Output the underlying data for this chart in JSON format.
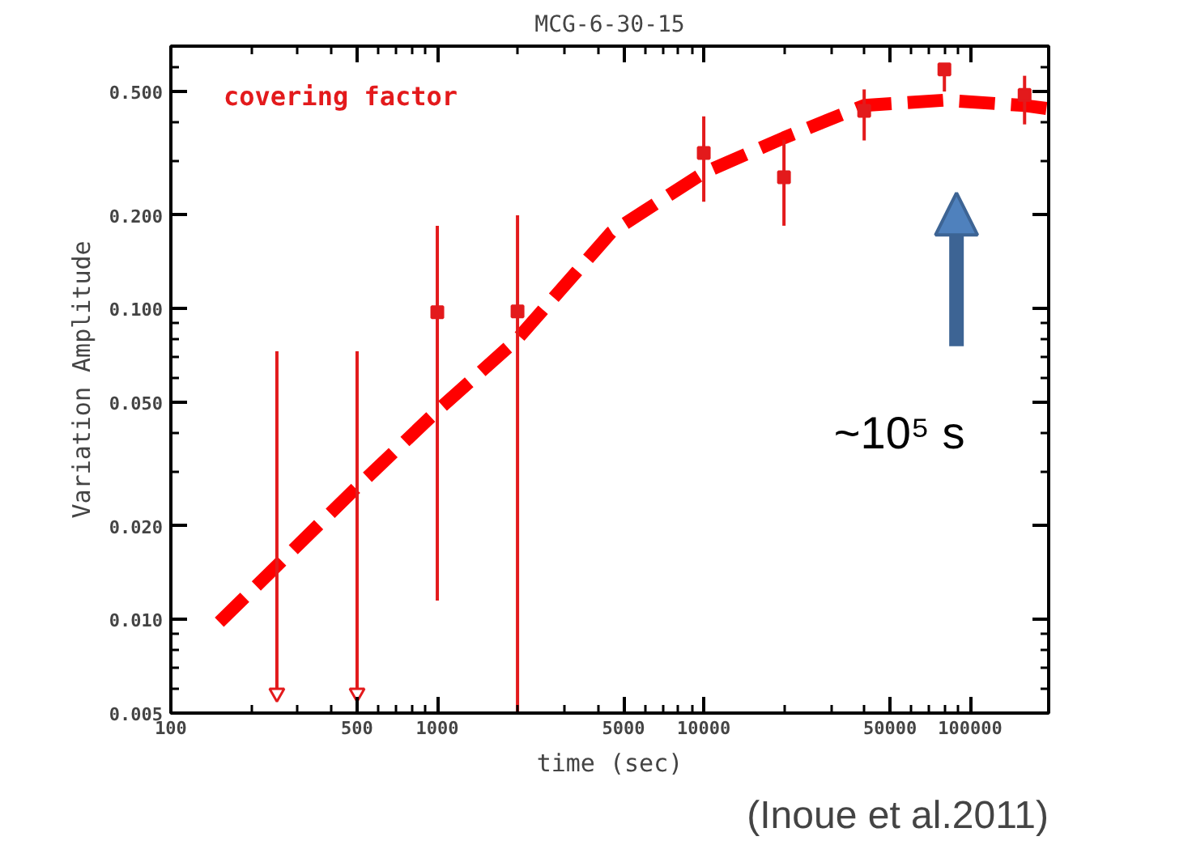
{
  "chart_data": {
    "type": "scatter",
    "title": "MCG-6-30-15",
    "xlabel": "time (sec)",
    "ylabel": "Variation Amplitude",
    "log": "xy",
    "xlim": [
      100,
      197000
    ],
    "ylim": [
      0.005,
      0.7
    ],
    "xticks": [
      100,
      {
        "value": 200,
        "label": null
      },
      {
        "value": 300,
        "label": null
      },
      {
        "value": 400,
        "label": null
      },
      500,
      {
        "value": 600,
        "label": null
      },
      {
        "value": 700,
        "label": null
      },
      {
        "value": 800,
        "label": null
      },
      {
        "value": 900,
        "label": null
      },
      1000,
      {
        "value": 2000,
        "label": null
      },
      {
        "value": 3000,
        "label": null
      },
      {
        "value": 4000,
        "label": null
      },
      5000,
      {
        "value": 6000,
        "label": null
      },
      {
        "value": 7000,
        "label": null
      },
      {
        "value": 8000,
        "label": null
      },
      {
        "value": 9000,
        "label": null
      },
      10000,
      {
        "value": 20000,
        "label": null
      },
      {
        "value": 30000,
        "label": null
      },
      {
        "value": 40000,
        "label": null
      },
      50000,
      {
        "value": 60000,
        "label": null
      },
      {
        "value": 70000,
        "label": null
      },
      {
        "value": 80000,
        "label": null
      },
      {
        "value": 90000,
        "label": null
      },
      100000
    ],
    "yticks": [
      {
        "value": 0.005,
        "label": "0.005"
      },
      {
        "value": 0.006,
        "label": null
      },
      {
        "value": 0.007,
        "label": null
      },
      {
        "value": 0.008,
        "label": null
      },
      {
        "value": 0.009,
        "label": null
      },
      {
        "value": 0.01,
        "label": "0.010"
      },
      {
        "value": 0.02,
        "label": "0.020"
      },
      {
        "value": 0.03,
        "label": null
      },
      {
        "value": 0.04,
        "label": null
      },
      {
        "value": 0.05,
        "label": "0.050"
      },
      {
        "value": 0.06,
        "label": null
      },
      {
        "value": 0.07,
        "label": null
      },
      {
        "value": 0.08,
        "label": null
      },
      {
        "value": 0.09,
        "label": null
      },
      {
        "value": 0.1,
        "label": "0.100"
      },
      {
        "value": 0.2,
        "label": "0.200"
      },
      {
        "value": 0.3,
        "label": null
      },
      {
        "value": 0.4,
        "label": null
      },
      {
        "value": 0.5,
        "label": "0.500"
      },
      {
        "value": 0.6,
        "label": null
      }
    ],
    "grid": false,
    "series": [
      {
        "name": "covering factor",
        "marker": "square",
        "color": "#e31a1c",
        "x": [
          1000,
          2000,
          10000,
          20000,
          40000,
          80000,
          160000
        ],
        "values": [
          0.0975,
          0.098,
          0.317,
          0.265,
          0.433,
          0.589,
          0.488
        ],
        "errors": [
          [
            0.0115,
            0.185
          ],
          [
            0.005,
            0.2
          ],
          [
            0.221,
            0.416
          ],
          [
            0.185,
            0.35
          ],
          [
            0.348,
            0.508
          ],
          [
            0.5,
            0.6
          ],
          [
            0.392,
            0.562
          ]
        ]
      },
      {
        "marker": "triangle",
        "color": "#e31a1c",
        "x": [
          250,
          500
        ],
        "values": [
          0.0058,
          0.0058
        ],
        "errors": [
          [
            0.0058,
            0.073
          ],
          [
            0.0058,
            0.073
          ]
        ]
      },
      {
        "type": "line",
        "line_style": "dashed",
        "color": "#ff0000",
        "x": [
          152,
          500,
          1000,
          2000,
          4490,
          10000,
          20000,
          40000,
          80000,
          160000,
          197000
        ],
        "values": [
          0.0098,
          0.0267,
          0.047,
          0.08,
          0.176,
          0.274,
          0.355,
          0.451,
          0.469,
          0.451,
          0.44
        ]
      }
    ],
    "annotations": [
      "~10⁵ s",
      "(Inoue et al.2011)"
    ]
  }
}
